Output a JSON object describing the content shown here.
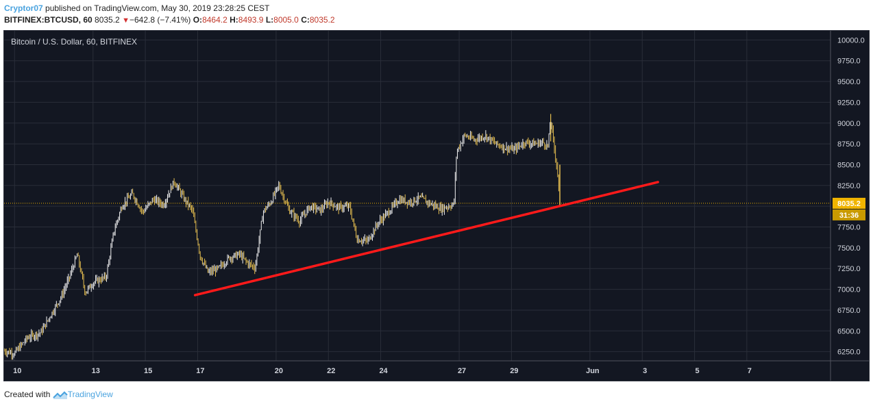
{
  "header": {
    "author": "Cryptor07",
    "published_text": " published on TradingView.com, May 30, 2019 23:28:25 CEST",
    "symbol": "BITFINEX:BTCUSD, 60",
    "last": "8035.2",
    "change": "−642.8 (−7.41%)",
    "open_label": "O:",
    "open": "8464.2",
    "high_label": "H:",
    "high": "8493.9",
    "low_label": "L:",
    "low": "8005.0",
    "close_label": "C:",
    "close": "8035.2"
  },
  "footer": {
    "created_with": "Created with",
    "brand": "TradingView"
  },
  "colors": {
    "background": "#131722",
    "grid": "#2a2e39",
    "candle": "#e8c050",
    "trendline": "#ff1a1a",
    "price_label": "#f0b400",
    "axis_text": "#d1d4dc"
  },
  "chart_data": {
    "type": "candlestick",
    "title": "Bitcoin / U.S. Dollar, 60, BITFINEX",
    "x_domain": [
      9.6,
      12.15
    ],
    "x_ticks": [
      {
        "day": 10,
        "label": "10"
      },
      {
        "day": 13,
        "label": "13"
      },
      {
        "day": 15,
        "label": "15"
      },
      {
        "day": 17,
        "label": "17"
      },
      {
        "day": 20,
        "label": "20"
      },
      {
        "day": 22,
        "label": "22"
      },
      {
        "day": 24,
        "label": "24"
      },
      {
        "day": 27,
        "label": "27"
      },
      {
        "day": 29,
        "label": "29"
      },
      {
        "day": 32,
        "label": "Jun"
      },
      {
        "day": 34,
        "label": "3"
      },
      {
        "day": 36,
        "label": "5"
      },
      {
        "day": 38,
        "label": "7"
      }
    ],
    "x_range_days": [
      9.6,
      41.2
    ],
    "y_range": [
      6140,
      10110
    ],
    "y_ticks": [
      "10000.0",
      "9750.0",
      "9500.0",
      "9250.0",
      "9000.0",
      "8750.0",
      "8500.0",
      "8250.0",
      "8000.0",
      "7750.0",
      "7500.0",
      "7250.0",
      "7000.0",
      "6750.0",
      "6500.0",
      "6250.0"
    ],
    "last_price": {
      "value": 8035.2,
      "label": "8035.2",
      "countdown": "31:36"
    },
    "price_path": [
      [
        9.6,
        6260
      ],
      [
        10.0,
        6230
      ],
      [
        10.5,
        6420
      ],
      [
        11.0,
        6480
      ],
      [
        11.4,
        6700
      ],
      [
        11.8,
        6920
      ],
      [
        12.1,
        7150
      ],
      [
        12.4,
        7420
      ],
      [
        12.7,
        6960
      ],
      [
        13.0,
        7080
      ],
      [
        13.5,
        7150
      ],
      [
        13.8,
        7700
      ],
      [
        14.1,
        8000
      ],
      [
        14.5,
        8150
      ],
      [
        14.9,
        7930
      ],
      [
        15.3,
        8080
      ],
      [
        15.7,
        8020
      ],
      [
        16.1,
        8300
      ],
      [
        16.5,
        8080
      ],
      [
        16.8,
        7950
      ],
      [
        17.1,
        7400
      ],
      [
        17.4,
        7200
      ],
      [
        17.8,
        7250
      ],
      [
        18.2,
        7380
      ],
      [
        18.6,
        7420
      ],
      [
        18.9,
        7320
      ],
      [
        19.2,
        7260
      ],
      [
        19.5,
        7930
      ],
      [
        19.8,
        8050
      ],
      [
        20.1,
        8250
      ],
      [
        20.5,
        7950
      ],
      [
        20.9,
        7820
      ],
      [
        21.3,
        8000
      ],
      [
        21.7,
        7950
      ],
      [
        22.0,
        8050
      ],
      [
        22.4,
        7980
      ],
      [
        22.8,
        8000
      ],
      [
        23.1,
        7600
      ],
      [
        23.5,
        7580
      ],
      [
        23.9,
        7800
      ],
      [
        24.3,
        7930
      ],
      [
        24.7,
        8080
      ],
      [
        25.1,
        8050
      ],
      [
        25.5,
        8100
      ],
      [
        25.9,
        8030
      ],
      [
        26.3,
        7970
      ],
      [
        26.8,
        8020
      ],
      [
        26.9,
        8650
      ],
      [
        27.2,
        8850
      ],
      [
        27.6,
        8800
      ],
      [
        28.0,
        8850
      ],
      [
        28.4,
        8750
      ],
      [
        28.8,
        8700
      ],
      [
        29.1,
        8680
      ],
      [
        29.5,
        8770
      ],
      [
        29.9,
        8750
      ],
      [
        30.2,
        8770
      ],
      [
        30.4,
        8720
      ],
      [
        30.5,
        9050
      ],
      [
        30.6,
        8780
      ],
      [
        30.75,
        8450
      ],
      [
        30.85,
        8040
      ]
    ],
    "trendline": {
      "start": [
        16.9,
        6930
      ],
      "end": [
        34.6,
        8290
      ]
    }
  }
}
